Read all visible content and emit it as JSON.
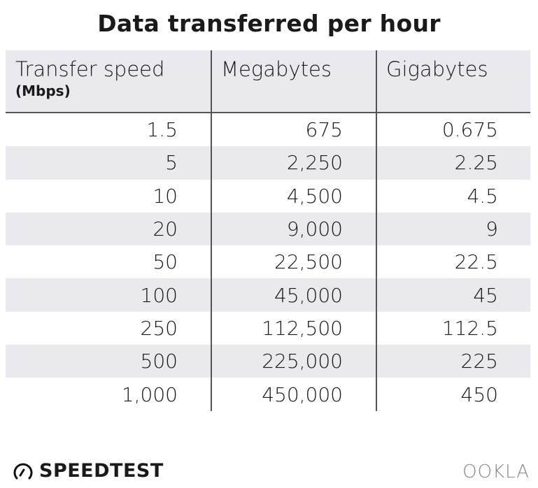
{
  "chart_data": {
    "type": "table",
    "title": "Data transferred per hour",
    "columns": [
      {
        "label": "Transfer speed",
        "sublabel": "(Mbps)"
      },
      {
        "label": "Megabytes"
      },
      {
        "label": "Gigabytes"
      }
    ],
    "rows": [
      [
        "1.5",
        "675",
        "0.675"
      ],
      [
        "5",
        "2,250",
        "2.25"
      ],
      [
        "10",
        "4,500",
        "4.5"
      ],
      [
        "20",
        "9,000",
        "9"
      ],
      [
        "50",
        "22,500",
        "22.5"
      ],
      [
        "100",
        "45,000",
        "45"
      ],
      [
        "250",
        "112,500",
        "112.5"
      ],
      [
        "500",
        "225,000",
        "225"
      ],
      [
        "1,000",
        "450,000",
        "450"
      ]
    ],
    "stripe_color": "#e9e9ee"
  },
  "footer": {
    "left_logo": "SPEEDTEST",
    "right_logo": "OOKLA"
  }
}
